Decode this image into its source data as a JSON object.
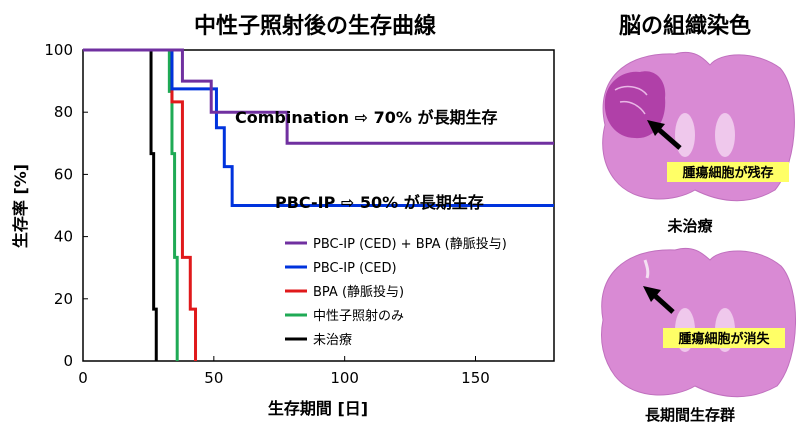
{
  "chart_data": {
    "type": "line",
    "title": "中性子照射後の生存曲線",
    "xlabel": "生存期間 [日]",
    "ylabel": "生存率 [%]",
    "xlim": [
      0,
      180
    ],
    "ylim": [
      0,
      100
    ],
    "x_ticks": [
      0,
      50,
      100,
      150
    ],
    "y_ticks": [
      0,
      20,
      40,
      60,
      80,
      100
    ],
    "legend_position": "bottom-right",
    "series": [
      {
        "name": "PBC-IP (CED) + BPA (静脈投与)",
        "color": "#7030a0",
        "points": [
          [
            0,
            100
          ],
          [
            38,
            100
          ],
          [
            38,
            90
          ],
          [
            49,
            90
          ],
          [
            49,
            80
          ],
          [
            78,
            80
          ],
          [
            78,
            70
          ],
          [
            180,
            70
          ]
        ]
      },
      {
        "name": "PBC-IP (CED)",
        "color": "#0033dd",
        "points": [
          [
            0,
            100
          ],
          [
            34,
            100
          ],
          [
            34,
            87.5
          ],
          [
            51,
            87.5
          ],
          [
            51,
            75
          ],
          [
            54,
            75
          ],
          [
            54,
            62.5
          ],
          [
            57,
            62.5
          ],
          [
            57,
            50
          ],
          [
            180,
            50
          ]
        ]
      },
      {
        "name": "BPA (静脈投与)",
        "color": "#e0191b",
        "points": [
          [
            0,
            100
          ],
          [
            34,
            100
          ],
          [
            34,
            83.3
          ],
          [
            38,
            83.3
          ],
          [
            38,
            33.3
          ],
          [
            41,
            33.3
          ],
          [
            41,
            16.7
          ],
          [
            43,
            16.7
          ],
          [
            43,
            0
          ]
        ]
      },
      {
        "name": "中性子照射のみ",
        "color": "#1faa55",
        "points": [
          [
            0,
            100
          ],
          [
            33,
            100
          ],
          [
            33,
            86.7
          ],
          [
            34,
            86.7
          ],
          [
            34,
            66.7
          ],
          [
            35,
            66.7
          ],
          [
            35,
            33.3
          ],
          [
            36,
            33.3
          ],
          [
            36,
            0
          ]
        ]
      },
      {
        "name": "未治療",
        "color": "#000000",
        "points": [
          [
            0,
            100
          ],
          [
            26,
            100
          ],
          [
            26,
            66.7
          ],
          [
            27,
            66.7
          ],
          [
            27,
            16.7
          ],
          [
            28,
            16.7
          ],
          [
            28,
            0
          ]
        ]
      }
    ],
    "annotations": [
      {
        "text": "Combination ⇨ 70% が長期生存"
      },
      {
        "text": "PBC-IP ⇨ 50% が長期生存"
      }
    ]
  },
  "brain_panel": {
    "title": "脳の組織染色",
    "untreated": {
      "caption": "未治療",
      "label": "腫瘍細胞が残存"
    },
    "long_term": {
      "caption": "長期間生存群",
      "label": "腫瘍細胞が消失"
    }
  },
  "colors": {
    "stain": "#d986d2",
    "tumor": "#b040a8",
    "label_bg": "#ffff66"
  }
}
